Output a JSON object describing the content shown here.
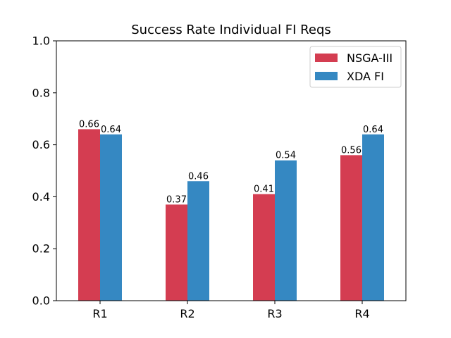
{
  "chart_data": {
    "type": "bar",
    "title": "Success Rate Individual FI Reqs",
    "xlabel": "",
    "ylabel": "",
    "categories": [
      "R1",
      "R2",
      "R3",
      "R4"
    ],
    "series": [
      {
        "name": "NSGA-III",
        "color": "#d43d51",
        "values": [
          0.66,
          0.37,
          0.41,
          0.56
        ],
        "value_labels": [
          "0.66",
          "0.37",
          "0.41",
          "0.56"
        ]
      },
      {
        "name": "XDA FI",
        "color": "#3588c2",
        "values": [
          0.64,
          0.46,
          0.54,
          0.64
        ],
        "value_labels": [
          "0.64",
          "0.46",
          "0.54",
          "0.64"
        ]
      }
    ],
    "ylim": [
      0,
      1.0
    ],
    "yticks": [
      "0.0",
      "0.2",
      "0.4",
      "0.6",
      "0.8",
      "1.0"
    ],
    "grid": false,
    "legend_position": "top-right"
  }
}
